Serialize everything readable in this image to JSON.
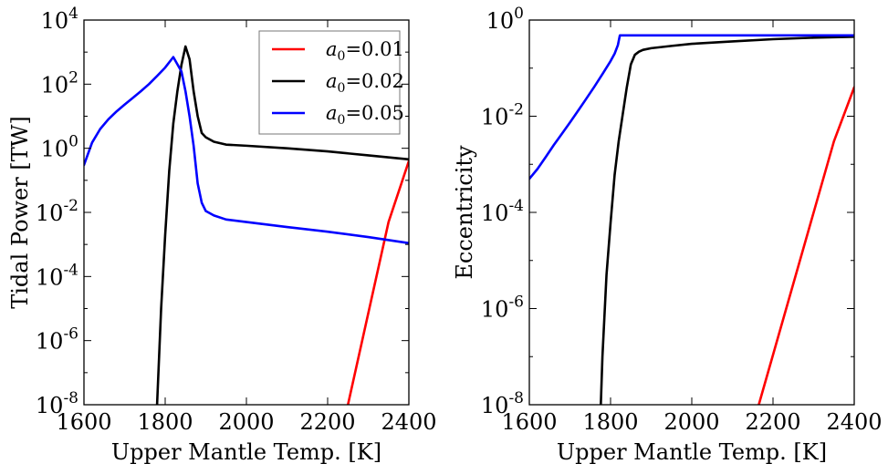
{
  "chart_data": [
    {
      "type": "line",
      "xlabel": "Upper Mantle Temp. [K]",
      "ylabel": "Tidal Power [TW]",
      "xlim": [
        1600,
        2400
      ],
      "ylim": [
        1e-08,
        10000.0
      ],
      "yscale": "log",
      "xticks": [
        "1600",
        "1800",
        "2000",
        "2200",
        "2400"
      ],
      "yticks": [
        {
          "base": "10",
          "exp": "4"
        },
        {
          "base": "10",
          "exp": "2"
        },
        {
          "base": "10",
          "exp": "0"
        },
        {
          "base": "10",
          "exp": "-2"
        },
        {
          "base": "10",
          "exp": "-4"
        },
        {
          "base": "10",
          "exp": "-6"
        },
        {
          "base": "10",
          "exp": "-8"
        }
      ],
      "legend_position": "top-right",
      "legend": [
        {
          "var": "a",
          "sub": "0",
          "value": "=0.01",
          "color": "#ff0000"
        },
        {
          "var": "a",
          "sub": "0",
          "value": "=0.02",
          "color": "#000000"
        },
        {
          "var": "a",
          "sub": "0",
          "value": "=0.05",
          "color": "#0000ff"
        }
      ],
      "series": [
        {
          "color": "#ff0000",
          "x": [
            2250,
            2350,
            2400
          ],
          "y": [
            1e-08,
            0.005,
            0.4
          ]
        },
        {
          "color": "#000000",
          "x": [
            1780,
            1790,
            1800,
            1810,
            1820,
            1830,
            1840,
            1850,
            1860,
            1870,
            1880,
            1890,
            1900,
            1920,
            1950,
            2000,
            2100,
            2200,
            2300,
            2400
          ],
          "y": [
            1e-08,
            1e-05,
            0.002,
            0.2,
            6,
            60,
            400,
            1500,
            600,
            60,
            10,
            3,
            2.2,
            1.6,
            1.3,
            1.2,
            1.0,
            0.8,
            0.6,
            0.45
          ]
        },
        {
          "color": "#0000ff",
          "x": [
            1600,
            1620,
            1640,
            1660,
            1680,
            1700,
            1720,
            1740,
            1760,
            1780,
            1800,
            1820,
            1840,
            1850,
            1860,
            1870,
            1880,
            1890,
            1900,
            1920,
            1950,
            2000,
            2100,
            2200,
            2300,
            2400
          ],
          "y": [
            0.3,
            1.5,
            4,
            8,
            14,
            23,
            37,
            60,
            100,
            180,
            330,
            700,
            250,
            60,
            10,
            1.2,
            0.08,
            0.02,
            0.011,
            0.008,
            0.006,
            0.005,
            0.0035,
            0.0025,
            0.0017,
            0.0011
          ]
        }
      ]
    },
    {
      "type": "line",
      "xlabel": "Upper Mantle Temp. [K]",
      "ylabel": "Eccentricity",
      "xlim": [
        1600,
        2400
      ],
      "ylim": [
        1e-08,
        1
      ],
      "yscale": "log",
      "xticks": [
        "1600",
        "1800",
        "2000",
        "2200",
        "2400"
      ],
      "yticks": [
        {
          "base": "10",
          "exp": "0"
        },
        {
          "base": "10",
          "exp": "-2"
        },
        {
          "base": "10",
          "exp": "-4"
        },
        {
          "base": "10",
          "exp": "-6"
        },
        {
          "base": "10",
          "exp": "-8"
        }
      ],
      "series": [
        {
          "color": "#ff0000",
          "x": [
            2165,
            2350,
            2400
          ],
          "y": [
            1e-08,
            0.003,
            0.04
          ]
        },
        {
          "color": "#000000",
          "x": [
            1776,
            1780,
            1790,
            1800,
            1810,
            1820,
            1830,
            1840,
            1850,
            1860,
            1870,
            1880,
            1900,
            1950,
            2000,
            2100,
            2200,
            2300,
            2400
          ],
          "y": [
            1e-08,
            1e-07,
            5e-06,
            6e-05,
            0.0006,
            0.003,
            0.011,
            0.04,
            0.12,
            0.19,
            0.22,
            0.24,
            0.26,
            0.29,
            0.32,
            0.36,
            0.4,
            0.43,
            0.45
          ]
        },
        {
          "color": "#0000ff",
          "x": [
            1600,
            1620,
            1640,
            1660,
            1680,
            1700,
            1720,
            1740,
            1760,
            1780,
            1800,
            1810,
            1818,
            1822,
            1823,
            1900,
            2000,
            2100,
            2200,
            2300,
            2400
          ],
          "y": [
            0.0005,
            0.0008,
            0.0014,
            0.0025,
            0.0043,
            0.0074,
            0.013,
            0.023,
            0.041,
            0.075,
            0.14,
            0.2,
            0.3,
            0.44,
            0.48,
            0.48,
            0.48,
            0.48,
            0.48,
            0.48,
            0.48
          ]
        }
      ]
    }
  ]
}
